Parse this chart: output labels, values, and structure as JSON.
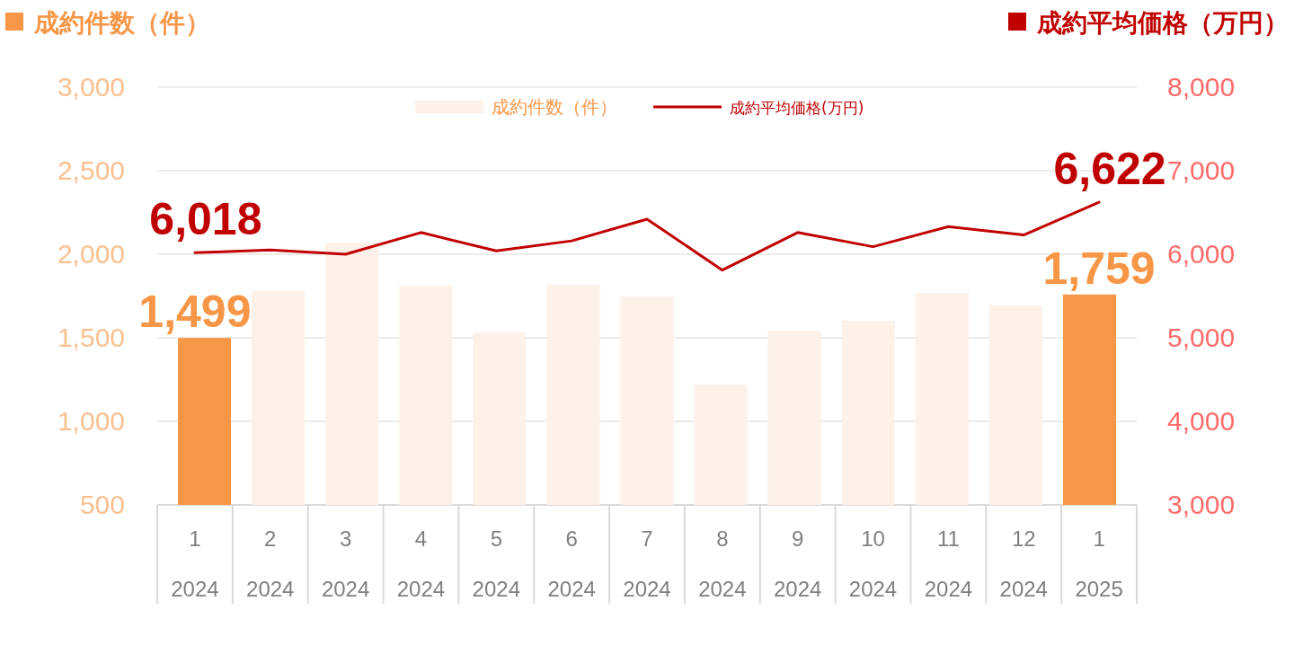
{
  "chart_data": {
    "type": "bar",
    "ylabel": "成約件数（件）",
    "y2label": "成約平均価格（万円）",
    "categories": [
      "1\n2024",
      "2\n2024",
      "3\n2024",
      "4\n2024",
      "5\n2024",
      "6\n2024",
      "7\n2024",
      "8\n2024",
      "9\n2024",
      "10\n2024",
      "11\n2024",
      "12\n2024",
      "1\n2025"
    ],
    "series": [
      {
        "name": "成約件数（件）",
        "color": "#f79646",
        "colors": [
          "#f79646",
          "#fdf1e8",
          "#fdf1e8",
          "#fdf1e8",
          "#fdf1e8",
          "#fdf1e8",
          "#fdf1e8",
          "#fdf1e8",
          "#fdf1e8",
          "#fdf1e8",
          "#fdf1e8",
          "#fdf1e8",
          "#f79646"
        ],
        "values": [
          1499,
          1780,
          2070,
          1812,
          1532,
          1817,
          1747,
          1220,
          1543,
          1602,
          1769,
          1694,
          1759
        ],
        "value_labels": [
          "1,499",
          null,
          null,
          null,
          null,
          null,
          null,
          null,
          null,
          null,
          null,
          null,
          "1,759"
        ]
      },
      {
        "type": "line",
        "name": "成約平均価格(万円)",
        "color": "#c00000",
        "axis": "y2",
        "values": [
          6018,
          6050,
          6000,
          6260,
          6040,
          6160,
          6420,
          5810,
          6260,
          6090,
          6330,
          6230,
          6622
        ],
        "value_labels": [
          "6,018",
          null,
          null,
          null,
          null,
          null,
          null,
          null,
          null,
          null,
          null,
          null,
          "6,622"
        ]
      }
    ],
    "ylim": [
      500,
      3000
    ],
    "yticks": [
      {
        "value": 500,
        "label": "500"
      },
      {
        "value": 1000,
        "label": "1,000"
      },
      {
        "value": 1500,
        "label": "1,500"
      },
      {
        "value": 2000,
        "label": "2,000"
      },
      {
        "value": 2500,
        "label": "2,500"
      },
      {
        "value": 3000,
        "label": "3,000"
      }
    ],
    "y2lim": [
      3000,
      8000
    ],
    "y2ticks": [
      {
        "value": 3000,
        "label": "3,000"
      },
      {
        "value": 4000,
        "label": "4,000"
      },
      {
        "value": 5000,
        "label": "5,000"
      },
      {
        "value": 6000,
        "label": "6,000"
      },
      {
        "value": 7000,
        "label": "7,000"
      },
      {
        "value": 8000,
        "label": "8,000"
      }
    ],
    "grid": "y",
    "legend": "top"
  }
}
